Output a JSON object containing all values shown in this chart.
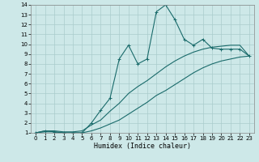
{
  "xlabel": "Humidex (Indice chaleur)",
  "background_color": "#cde8e8",
  "grid_color": "#aacccc",
  "line_color": "#1a6b6b",
  "xlim": [
    -0.5,
    23.5
  ],
  "ylim": [
    1,
    14
  ],
  "xticks": [
    0,
    1,
    2,
    3,
    4,
    5,
    6,
    7,
    8,
    9,
    10,
    11,
    12,
    13,
    14,
    15,
    16,
    17,
    18,
    19,
    20,
    21,
    22,
    23
  ],
  "yticks": [
    1,
    2,
    3,
    4,
    5,
    6,
    7,
    8,
    9,
    10,
    11,
    12,
    13,
    14
  ],
  "line1_x": [
    0,
    1,
    2,
    3,
    4,
    5,
    6,
    7,
    8,
    9,
    10,
    11,
    12,
    13,
    14,
    15,
    16,
    17,
    18,
    19,
    20,
    21,
    22,
    23
  ],
  "line1_y": [
    1,
    1.2,
    1.1,
    1.0,
    1.0,
    1.0,
    2.0,
    3.3,
    4.5,
    8.5,
    9.9,
    8.0,
    8.5,
    13.3,
    14.0,
    12.5,
    10.5,
    9.9,
    10.5,
    9.6,
    9.5,
    9.5,
    9.5,
    8.8
  ],
  "line2_x": [
    0,
    1,
    2,
    3,
    4,
    5,
    6,
    7,
    8,
    9,
    10,
    11,
    12,
    13,
    14,
    15,
    16,
    17,
    18,
    19,
    20,
    21,
    22,
    23
  ],
  "line2_y": [
    1,
    1.2,
    1.2,
    1.1,
    1.1,
    1.2,
    1.8,
    2.3,
    3.2,
    4.0,
    5.0,
    5.7,
    6.3,
    7.0,
    7.7,
    8.3,
    8.8,
    9.2,
    9.5,
    9.7,
    9.8,
    9.9,
    9.9,
    8.8
  ],
  "line3_x": [
    0,
    1,
    2,
    3,
    4,
    5,
    6,
    7,
    8,
    9,
    10,
    11,
    12,
    13,
    14,
    15,
    16,
    17,
    18,
    19,
    20,
    21,
    22,
    23
  ],
  "line3_y": [
    1,
    1.1,
    1.1,
    1.0,
    1.0,
    1.0,
    1.2,
    1.5,
    1.9,
    2.3,
    2.9,
    3.5,
    4.1,
    4.8,
    5.3,
    5.9,
    6.5,
    7.1,
    7.6,
    8.0,
    8.3,
    8.5,
    8.7,
    8.8
  ]
}
